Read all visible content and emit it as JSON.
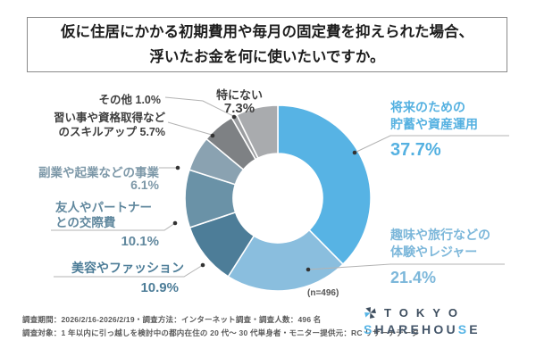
{
  "title": {
    "line1": "仮に住居にかかる初期費用や毎月の固定費を抑えられた場合、",
    "line2": "浮いたお金を何に使いたいですか。"
  },
  "chart_data": {
    "type": "pie",
    "subtype": "donut",
    "title": "仮に住居にかかる初期費用や毎月の固定費を抑えられた場合、浮いたお金を何に使いたいですか。",
    "sample_note": "(n=496)",
    "start_angle_deg": 0,
    "direction": "clockwise",
    "legend_position": "around-chart",
    "slices": [
      {
        "id": "savings",
        "label": "将来のための貯蓄や資産運用",
        "label_line1": "将来のための",
        "label_line2": "貯蓄や資産運用",
        "value": 37.7,
        "pct_text": "37.7%",
        "color": "#57b3e4",
        "label_color": "#55b1e1"
      },
      {
        "id": "leisure",
        "label": "趣味や旅行などの体験やレジャー",
        "label_line1": "趣味や旅行などの",
        "label_line2": "体験やレジャー",
        "value": 21.4,
        "pct_text": "21.4%",
        "color": "#8abede",
        "label_color": "#7cb7da"
      },
      {
        "id": "beauty",
        "label": "美容やファッション",
        "label_line1": "美容やファッション",
        "label_line2": "",
        "value": 10.9,
        "pct_text": "10.9%",
        "color": "#4d7d98",
        "label_color": "#4d7d98"
      },
      {
        "id": "social",
        "label": "友人やパートナーとの交際費",
        "label_line1": "友人やパートナー",
        "label_line2": "との交際費",
        "value": 10.1,
        "pct_text": "10.1%",
        "color": "#6a92a7",
        "label_color": "#61889e"
      },
      {
        "id": "business",
        "label": "副業や起業などの事業",
        "label_line1": "副業や起業などの事業",
        "label_line2": "",
        "value": 6.1,
        "pct_text": "6.1%",
        "color": "#8aa2b1",
        "label_color": "#7d98a8"
      },
      {
        "id": "skillup",
        "label": "習い事や資格取得などのスキルアップ",
        "label_line1": "習い事や資格取得など",
        "label_line2": "のスキルアップ",
        "value": 5.7,
        "pct_text": "5.7%",
        "color": "#7e8184",
        "label_color": "#3f3f3f"
      },
      {
        "id": "other",
        "label": "その他",
        "label_line1": "その他",
        "label_line2": "",
        "value": 1.0,
        "pct_text": "1.0%",
        "color": "#9b9da0",
        "label_color": "#3f3f3f"
      },
      {
        "id": "none",
        "label": "特にない",
        "label_line1": "特にない",
        "label_line2": "",
        "value": 7.3,
        "pct_text": "7.3%",
        "color": "#a9abae",
        "label_color": "#3f3f3f"
      }
    ]
  },
  "footer": {
    "line1": "調査期間：2026/2/16-2026/2/19・調査方法：インターネット調査・調査人数：496 名",
    "line2": "調査対象：1 年以内に引っ越しを検討中の都内在住の 20 代～ 30 代単身者・モニター提供元：RC リサーチデータ"
  },
  "logo": {
    "line1": "TOKYO",
    "line2": "SHAREHOUSE",
    "accent_letter_indexes": [
      0,
      8
    ],
    "accent_color": "#56b4e5",
    "base_color": "#44566a"
  }
}
